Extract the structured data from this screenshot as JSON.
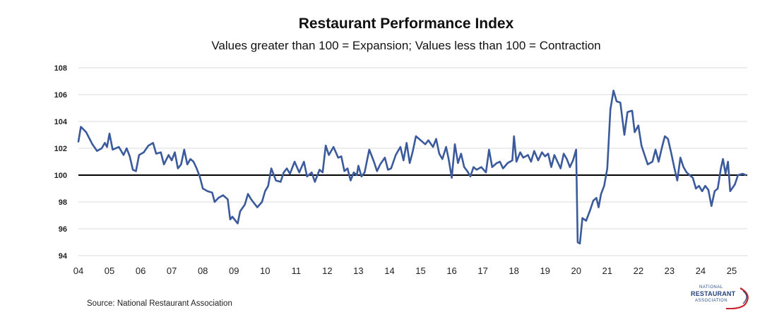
{
  "chart_data": {
    "type": "line",
    "title": "Restaurant Performance Index",
    "subtitle": "Values greater than 100 = Expansion; Values less than 100 = Contraction",
    "xlabel": "",
    "ylabel": "",
    "ylim": [
      94,
      108
    ],
    "yticks": [
      "94",
      "96",
      "98",
      "100",
      "102",
      "104",
      "106",
      "108"
    ],
    "xlim": [
      2004.0,
      2025.5
    ],
    "xtick_labels": [
      "04",
      "05",
      "06",
      "07",
      "08",
      "09",
      "10",
      "11",
      "12",
      "13",
      "14",
      "15",
      "16",
      "17",
      "18",
      "19",
      "20",
      "21",
      "22",
      "23",
      "24",
      "25"
    ],
    "reference_line": 100,
    "grid": true,
    "series": [
      {
        "name": "Restaurant Performance Index",
        "color": "#3a5a9c",
        "points": [
          [
            2004.0,
            102.5
          ],
          [
            2004.08,
            103.6
          ],
          [
            2004.25,
            103.2
          ],
          [
            2004.45,
            102.3
          ],
          [
            2004.6,
            101.8
          ],
          [
            2004.75,
            102.0
          ],
          [
            2004.85,
            102.4
          ],
          [
            2004.92,
            102.1
          ],
          [
            2005.0,
            103.1
          ],
          [
            2005.1,
            101.9
          ],
          [
            2005.3,
            102.1
          ],
          [
            2005.45,
            101.5
          ],
          [
            2005.55,
            102.0
          ],
          [
            2005.65,
            101.4
          ],
          [
            2005.75,
            100.4
          ],
          [
            2005.85,
            100.3
          ],
          [
            2005.95,
            101.5
          ],
          [
            2006.1,
            101.7
          ],
          [
            2006.25,
            102.2
          ],
          [
            2006.4,
            102.4
          ],
          [
            2006.5,
            101.6
          ],
          [
            2006.65,
            101.7
          ],
          [
            2006.75,
            100.8
          ],
          [
            2006.9,
            101.5
          ],
          [
            2007.0,
            101.1
          ],
          [
            2007.1,
            101.7
          ],
          [
            2007.2,
            100.5
          ],
          [
            2007.3,
            100.8
          ],
          [
            2007.4,
            101.9
          ],
          [
            2007.5,
            100.8
          ],
          [
            2007.6,
            101.2
          ],
          [
            2007.7,
            101.0
          ],
          [
            2007.8,
            100.5
          ],
          [
            2007.9,
            99.9
          ],
          [
            2008.0,
            99.0
          ],
          [
            2008.15,
            98.8
          ],
          [
            2008.3,
            98.7
          ],
          [
            2008.38,
            98.0
          ],
          [
            2008.5,
            98.3
          ],
          [
            2008.65,
            98.5
          ],
          [
            2008.8,
            98.2
          ],
          [
            2008.88,
            96.7
          ],
          [
            2008.95,
            96.9
          ],
          [
            2009.05,
            96.6
          ],
          [
            2009.12,
            96.4
          ],
          [
            2009.2,
            97.3
          ],
          [
            2009.35,
            97.8
          ],
          [
            2009.45,
            98.6
          ],
          [
            2009.55,
            98.2
          ],
          [
            2009.65,
            97.9
          ],
          [
            2009.75,
            97.6
          ],
          [
            2009.9,
            98.0
          ],
          [
            2010.0,
            98.8
          ],
          [
            2010.1,
            99.2
          ],
          [
            2010.2,
            100.5
          ],
          [
            2010.35,
            99.6
          ],
          [
            2010.5,
            99.5
          ],
          [
            2010.6,
            100.2
          ],
          [
            2010.7,
            100.5
          ],
          [
            2010.8,
            100.1
          ],
          [
            2010.95,
            101.0
          ],
          [
            2011.1,
            100.2
          ],
          [
            2011.25,
            101.0
          ],
          [
            2011.35,
            99.9
          ],
          [
            2011.5,
            100.2
          ],
          [
            2011.6,
            99.5
          ],
          [
            2011.75,
            100.4
          ],
          [
            2011.85,
            100.2
          ],
          [
            2011.95,
            102.2
          ],
          [
            2012.05,
            101.5
          ],
          [
            2012.2,
            102.1
          ],
          [
            2012.35,
            101.3
          ],
          [
            2012.45,
            101.4
          ],
          [
            2012.55,
            100.3
          ],
          [
            2012.65,
            100.5
          ],
          [
            2012.75,
            99.6
          ],
          [
            2012.85,
            100.2
          ],
          [
            2012.95,
            100.0
          ],
          [
            2013.0,
            100.7
          ],
          [
            2013.1,
            99.9
          ],
          [
            2013.2,
            100.2
          ],
          [
            2013.35,
            101.9
          ],
          [
            2013.5,
            101.0
          ],
          [
            2013.6,
            100.3
          ],
          [
            2013.7,
            100.8
          ],
          [
            2013.85,
            101.3
          ],
          [
            2013.95,
            100.4
          ],
          [
            2014.05,
            100.5
          ],
          [
            2014.2,
            101.5
          ],
          [
            2014.35,
            102.1
          ],
          [
            2014.45,
            101.1
          ],
          [
            2014.55,
            102.4
          ],
          [
            2014.65,
            100.9
          ],
          [
            2014.75,
            101.8
          ],
          [
            2014.85,
            102.9
          ],
          [
            2015.0,
            102.6
          ],
          [
            2015.15,
            102.3
          ],
          [
            2015.25,
            102.6
          ],
          [
            2015.4,
            102.1
          ],
          [
            2015.5,
            102.7
          ],
          [
            2015.6,
            101.6
          ],
          [
            2015.7,
            101.2
          ],
          [
            2015.82,
            102.1
          ],
          [
            2015.9,
            101.2
          ],
          [
            2016.0,
            99.8
          ],
          [
            2016.1,
            102.3
          ],
          [
            2016.2,
            100.9
          ],
          [
            2016.3,
            101.6
          ],
          [
            2016.4,
            100.6
          ],
          [
            2016.5,
            100.3
          ],
          [
            2016.6,
            99.9
          ],
          [
            2016.7,
            100.6
          ],
          [
            2016.8,
            100.4
          ],
          [
            2016.95,
            100.6
          ],
          [
            2017.1,
            100.2
          ],
          [
            2017.2,
            101.9
          ],
          [
            2017.3,
            100.6
          ],
          [
            2017.45,
            100.9
          ],
          [
            2017.55,
            101.0
          ],
          [
            2017.65,
            100.5
          ],
          [
            2017.8,
            100.9
          ],
          [
            2017.95,
            101.1
          ],
          [
            2018.0,
            102.9
          ],
          [
            2018.08,
            101.0
          ],
          [
            2018.2,
            101.7
          ],
          [
            2018.3,
            101.3
          ],
          [
            2018.45,
            101.5
          ],
          [
            2018.55,
            101.0
          ],
          [
            2018.65,
            101.8
          ],
          [
            2018.78,
            101.1
          ],
          [
            2018.9,
            101.7
          ],
          [
            2019.0,
            101.4
          ],
          [
            2019.1,
            101.6
          ],
          [
            2019.2,
            100.6
          ],
          [
            2019.3,
            101.5
          ],
          [
            2019.4,
            101.0
          ],
          [
            2019.5,
            100.5
          ],
          [
            2019.6,
            101.6
          ],
          [
            2019.7,
            101.2
          ],
          [
            2019.8,
            100.6
          ],
          [
            2019.9,
            101.1
          ],
          [
            2020.0,
            101.9
          ],
          [
            2020.05,
            95.0
          ],
          [
            2020.12,
            94.9
          ],
          [
            2020.2,
            96.8
          ],
          [
            2020.32,
            96.6
          ],
          [
            2020.45,
            97.4
          ],
          [
            2020.55,
            98.1
          ],
          [
            2020.65,
            98.3
          ],
          [
            2020.72,
            97.6
          ],
          [
            2020.8,
            98.6
          ],
          [
            2020.9,
            99.2
          ],
          [
            2021.0,
            100.5
          ],
          [
            2021.1,
            104.9
          ],
          [
            2021.2,
            106.3
          ],
          [
            2021.3,
            105.5
          ],
          [
            2021.42,
            105.4
          ],
          [
            2021.55,
            103.0
          ],
          [
            2021.65,
            104.7
          ],
          [
            2021.8,
            104.8
          ],
          [
            2021.88,
            103.2
          ],
          [
            2022.0,
            103.7
          ],
          [
            2022.1,
            102.2
          ],
          [
            2022.2,
            101.5
          ],
          [
            2022.3,
            100.8
          ],
          [
            2022.45,
            101.0
          ],
          [
            2022.55,
            101.9
          ],
          [
            2022.65,
            101.0
          ],
          [
            2022.75,
            102.0
          ],
          [
            2022.85,
            102.9
          ],
          [
            2022.95,
            102.7
          ],
          [
            2023.05,
            101.7
          ],
          [
            2023.15,
            100.6
          ],
          [
            2023.25,
            99.6
          ],
          [
            2023.35,
            101.3
          ],
          [
            2023.45,
            100.6
          ],
          [
            2023.55,
            100.2
          ],
          [
            2023.65,
            100.0
          ],
          [
            2023.75,
            99.8
          ],
          [
            2023.85,
            99.0
          ],
          [
            2023.95,
            99.2
          ],
          [
            2024.05,
            98.8
          ],
          [
            2024.15,
            99.2
          ],
          [
            2024.25,
            98.9
          ],
          [
            2024.35,
            97.7
          ],
          [
            2024.45,
            98.8
          ],
          [
            2024.55,
            99.0
          ],
          [
            2024.65,
            100.5
          ],
          [
            2024.72,
            101.2
          ],
          [
            2024.8,
            100.1
          ],
          [
            2024.88,
            101.0
          ],
          [
            2024.95,
            98.8
          ],
          [
            2025.1,
            99.3
          ],
          [
            2025.2,
            100.0
          ],
          [
            2025.35,
            100.1
          ],
          [
            2025.45,
            100.0
          ]
        ]
      }
    ]
  },
  "source": "Source: National Restaurant Association",
  "logo": {
    "line1": "NATIONAL",
    "line2": "RESTAURANT",
    "line3": "ASSOCIATION"
  },
  "colors": {
    "line": "#3a5a9c",
    "baseline": "#000000",
    "grid": "#d9d9d9",
    "logo_blue": "#24427e",
    "logo_red": "#c8262f"
  }
}
